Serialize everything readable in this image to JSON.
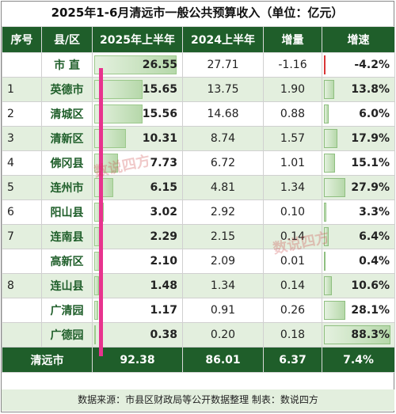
{
  "title": "2025年1-6月清远市一般公共预算收入（单位：亿元）",
  "headers": [
    "序号",
    "县/区",
    "2025年上半年",
    "2024上半年",
    "增量",
    "增速"
  ],
  "rows": [
    {
      "idx": "",
      "name": "市 直",
      "cur": "26.55",
      "prev": "27.71",
      "inc": "-1.16",
      "rate": "-4.2%"
    },
    {
      "idx": "1",
      "name": "英德市",
      "cur": "15.65",
      "prev": "13.75",
      "inc": "1.90",
      "rate": "13.8%"
    },
    {
      "idx": "2",
      "name": "清城区",
      "cur": "15.56",
      "prev": "14.68",
      "inc": "0.88",
      "rate": "6.0%"
    },
    {
      "idx": "3",
      "name": "清新区",
      "cur": "10.31",
      "prev": "8.74",
      "inc": "1.57",
      "rate": "17.9%"
    },
    {
      "idx": "4",
      "name": "佛冈县",
      "cur": "7.73",
      "prev": "6.72",
      "inc": "1.01",
      "rate": "15.1%"
    },
    {
      "idx": "5",
      "name": "连州市",
      "cur": "6.15",
      "prev": "4.81",
      "inc": "1.34",
      "rate": "27.9%"
    },
    {
      "idx": "6",
      "name": "阳山县",
      "cur": "3.02",
      "prev": "2.92",
      "inc": "0.10",
      "rate": "3.3%"
    },
    {
      "idx": "7",
      "name": "连南县",
      "cur": "2.29",
      "prev": "2.15",
      "inc": "0.14",
      "rate": "6.4%"
    },
    {
      "idx": "",
      "name": "高新区",
      "cur": "2.10",
      "prev": "2.09",
      "inc": "0.01",
      "rate": "0.4%"
    },
    {
      "idx": "8",
      "name": "连山县",
      "cur": "1.48",
      "prev": "1.34",
      "inc": "0.14",
      "rate": "10.6%"
    },
    {
      "idx": "",
      "name": "广清园",
      "cur": "1.17",
      "prev": "0.91",
      "inc": "0.26",
      "rate": "28.1%"
    },
    {
      "idx": "",
      "name": "广德园",
      "cur": "0.38",
      "prev": "0.20",
      "inc": "0.18",
      "rate": "88.3%"
    }
  ],
  "total": {
    "name": "清远市",
    "cur": "92.38",
    "prev": "86.01",
    "inc": "6.37",
    "rate": "7.4%"
  },
  "source": "数据来源：市县区财政局等公开数据整理    制表：数说四方",
  "watermark": "数说四方",
  "chart_data": {
    "type": "table",
    "title": "2025年1-6月清远市一般公共预算收入（单位：亿元）",
    "columns": [
      "序号",
      "县/区",
      "2025年上半年",
      "2024上半年",
      "增量",
      "增速"
    ],
    "categories": [
      "市 直",
      "英德市",
      "清城区",
      "清新区",
      "佛冈县",
      "连州市",
      "阳山县",
      "连南县",
      "高新区",
      "连山县",
      "广清园",
      "广德园"
    ],
    "series": [
      {
        "name": "2025年上半年",
        "values": [
          26.55,
          15.65,
          15.56,
          10.31,
          7.73,
          6.15,
          3.02,
          2.29,
          2.1,
          1.48,
          1.17,
          0.38
        ]
      },
      {
        "name": "2024上半年",
        "values": [
          27.71,
          13.75,
          14.68,
          8.74,
          6.72,
          4.81,
          2.92,
          2.15,
          2.09,
          1.34,
          0.91,
          0.2
        ]
      },
      {
        "name": "增量",
        "values": [
          -1.16,
          1.9,
          0.88,
          1.57,
          1.01,
          1.34,
          0.1,
          0.14,
          0.01,
          0.14,
          0.26,
          0.18
        ]
      },
      {
        "name": "增速",
        "values": [
          -4.2,
          13.8,
          6.0,
          17.9,
          15.1,
          27.9,
          3.3,
          6.4,
          0.4,
          10.6,
          28.1,
          88.3
        ]
      }
    ],
    "total": {
      "2025年上半年": 92.38,
      "2024上半年": 86.01,
      "增量": 6.37,
      "增速": 7.4
    },
    "colors": {
      "header": "#1f5e2a",
      "stripe": "#e3efde",
      "bar": "#b6d8aa",
      "negative_bar": "#d93636",
      "marker": "#e8338e"
    }
  }
}
